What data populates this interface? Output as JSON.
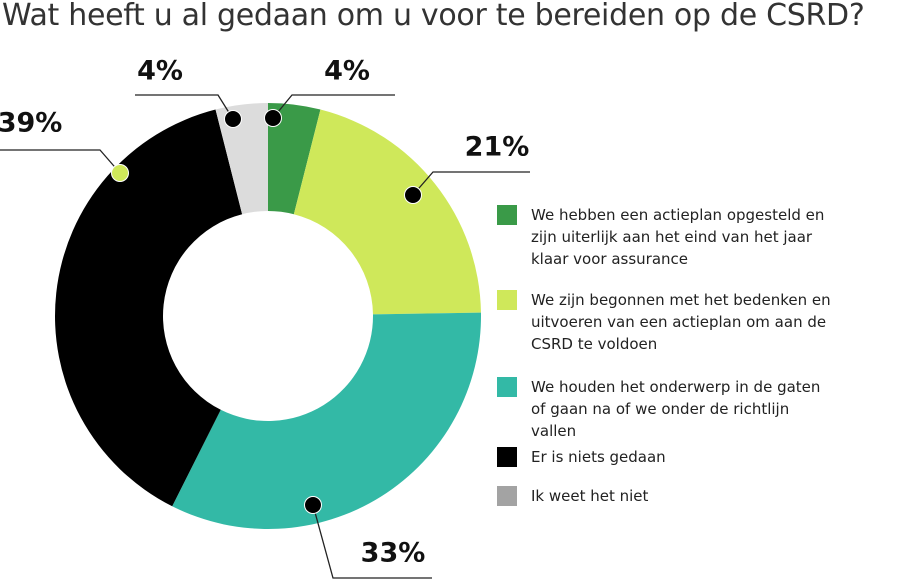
{
  "chart_data": {
    "type": "donut",
    "title": "Wat heeft u al gedaan om u voor te bereiden op de CSRD?",
    "categories": [
      "We hebben een actieplan opgesteld en zijn uiterlijk aan het eind van het jaar klaar voor assurance",
      "We zijn begonnen met het bedenken en uitvoeren van een actieplan om aan de CSRD te voldoen",
      "We houden het onderwerp in de gaten of gaan na of we onder de richtlijn vallen",
      "Er is niets gedaan",
      "Ik weet het niet"
    ],
    "values": [
      4,
      21,
      33,
      39,
      4
    ],
    "value_labels": [
      "4%",
      "21%",
      "33%",
      "39%",
      "4%"
    ],
    "colors": [
      "#3a9a48",
      "#cfe85a",
      "#33b9a6",
      "#000000",
      "#dcdcdc"
    ],
    "legend_colors": [
      "#3a9a48",
      "#cfe85a",
      "#33b9a6",
      "#000000",
      "#a3a3a3"
    ]
  }
}
